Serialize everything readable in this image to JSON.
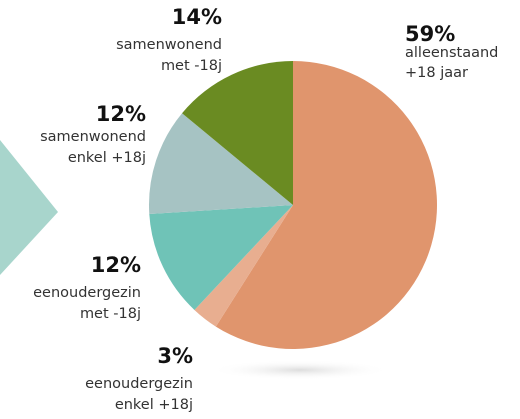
{
  "chart_data": {
    "type": "pie",
    "categories": [
      [
        "alleenstaand",
        "+18 jaar"
      ],
      [
        "eenoudergezin",
        "enkel +18j"
      ],
      [
        "eenoudergezin",
        "met -18j"
      ],
      [
        "samenwonend",
        "enkel +18j"
      ],
      [
        "samenwonend",
        "met -18j"
      ]
    ],
    "values": [
      59,
      3,
      12,
      12,
      14
    ],
    "value_labels": [
      "59%",
      "3%",
      "12%",
      "12%",
      "14%"
    ],
    "colors": [
      "#e0956d",
      "#e8ae90",
      "#6fc3b7",
      "#a6c3c3",
      "#6a8b22"
    ]
  }
}
